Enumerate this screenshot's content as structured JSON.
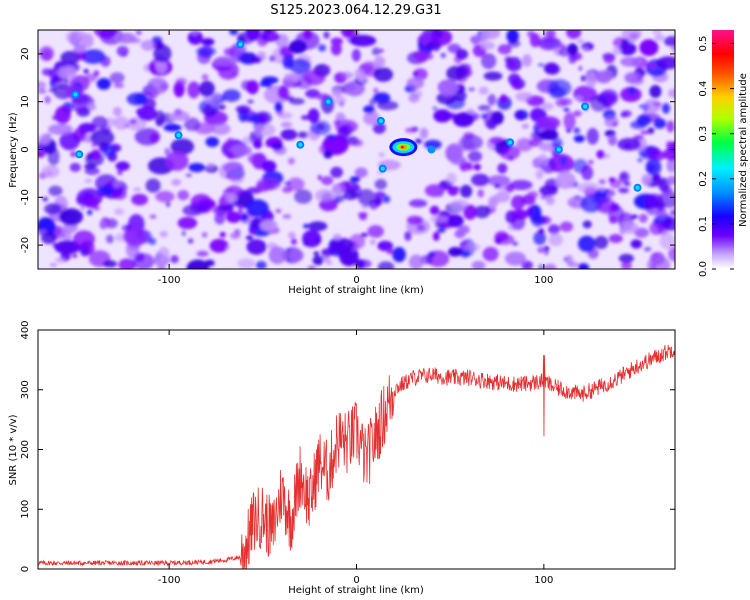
{
  "figure_title": "S125.2023.064.12.29.G31",
  "chart_data": [
    {
      "type": "heatmap",
      "title": "S125.2023.064.12.29.G31",
      "xlabel": "Height of straight line (km)",
      "ylabel": "Frequency (Hz)",
      "xlim": [
        -170,
        170
      ],
      "ylim": [
        -25,
        25
      ],
      "x_ticks": [
        -100,
        0,
        100
      ],
      "y_ticks": [
        -20,
        -10,
        0,
        10,
        20
      ],
      "colorbar": {
        "label": "Normalized spectral amplitude",
        "range": [
          0.0,
          0.53
        ],
        "ticks": [
          0.0,
          0.1,
          0.2,
          0.3,
          0.4,
          0.5
        ],
        "colors": [
          "#ffffff",
          "#5a00ff",
          "#0000ff",
          "#00e0ff",
          "#00ff40",
          "#c0ff00",
          "#ffb000",
          "#ff0000",
          "#ff1090"
        ]
      },
      "features": [
        {
          "x": 25,
          "y": 0.5,
          "value": 0.5,
          "note": "peak"
        }
      ]
    },
    {
      "type": "line",
      "xlabel": "Height of straight line (km)",
      "ylabel": "SNR (10 * v/v)",
      "xlim": [
        -170,
        170
      ],
      "ylim": [
        0,
        400
      ],
      "x_ticks": [
        -100,
        0,
        100
      ],
      "y_ticks": [
        0,
        100,
        200,
        300,
        400
      ],
      "line_color": "#e53030",
      "x": [
        -170,
        -150,
        -120,
        -100,
        -80,
        -70,
        -62,
        -58,
        -55,
        -50,
        -45,
        -40,
        -35,
        -30,
        -25,
        -20,
        -15,
        -10,
        -5,
        0,
        5,
        10,
        15,
        20,
        25,
        30,
        40,
        50,
        60,
        70,
        80,
        90,
        95,
        100,
        105,
        110,
        120,
        130,
        140,
        150,
        160,
        170
      ],
      "y": [
        10,
        10,
        10,
        10,
        12,
        15,
        20,
        45,
        80,
        90,
        60,
        130,
        80,
        160,
        110,
        180,
        160,
        220,
        210,
        230,
        180,
        220,
        260,
        300,
        310,
        320,
        325,
        320,
        320,
        315,
        310,
        310,
        312,
        315,
        305,
        300,
        292,
        305,
        320,
        340,
        355,
        370
      ]
    }
  ]
}
